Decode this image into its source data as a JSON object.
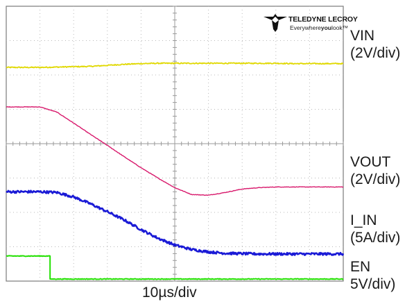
{
  "brand": {
    "name": "TELEDYNE LECROY",
    "tagline_pre": "Everywhere",
    "tagline_bold": "you",
    "tagline_post": "look",
    "tagline_mark": "™"
  },
  "chart_data": {
    "type": "line",
    "title": "",
    "xlabel": "10µs/div",
    "grid": true,
    "x_divisions": 10,
    "y_divisions": 8,
    "x": [
      0,
      0.5,
      1,
      1.5,
      2,
      2.5,
      3,
      3.5,
      4,
      4.5,
      5,
      5.5,
      6,
      6.5,
      7,
      7.5,
      8,
      8.5,
      9,
      9.5,
      10
    ],
    "series": [
      {
        "name": "VIN",
        "scale": "(2V/div)",
        "color": "#e0d800",
        "values": [
          6.22,
          6.22,
          6.22,
          6.23,
          6.24,
          6.25,
          6.28,
          6.31,
          6.33,
          6.34,
          6.34,
          6.34,
          6.34,
          6.34,
          6.34,
          6.34,
          6.34,
          6.33,
          6.33,
          6.33,
          6.33
        ]
      },
      {
        "name": "VOUT",
        "scale": "(2V/div)",
        "color": "#d8196c",
        "values": [
          5.07,
          5.07,
          5.07,
          4.92,
          4.6,
          4.27,
          3.95,
          3.62,
          3.3,
          3.0,
          2.72,
          2.52,
          2.5,
          2.58,
          2.68,
          2.72,
          2.74,
          2.74,
          2.74,
          2.74,
          2.74
        ]
      },
      {
        "name": "I_IN",
        "scale": "(5A/div)",
        "color": "#1a1ad6",
        "values": [
          2.6,
          2.6,
          2.6,
          2.58,
          2.45,
          2.25,
          2.02,
          1.78,
          1.5,
          1.25,
          1.05,
          0.92,
          0.85,
          0.81,
          0.8,
          0.79,
          0.79,
          0.79,
          0.79,
          0.79,
          0.79
        ]
      },
      {
        "name": "EN",
        "scale": "5V/div)",
        "color": "#22e000",
        "values": [
          0.73,
          0.73,
          0.73,
          0.06,
          0.06,
          0.06,
          0.06,
          0.06,
          0.06,
          0.06,
          0.06,
          0.06,
          0.06,
          0.06,
          0.06,
          0.06,
          0.06,
          0.06,
          0.06,
          0.06,
          0.06
        ],
        "step_at": 1.3
      }
    ]
  }
}
